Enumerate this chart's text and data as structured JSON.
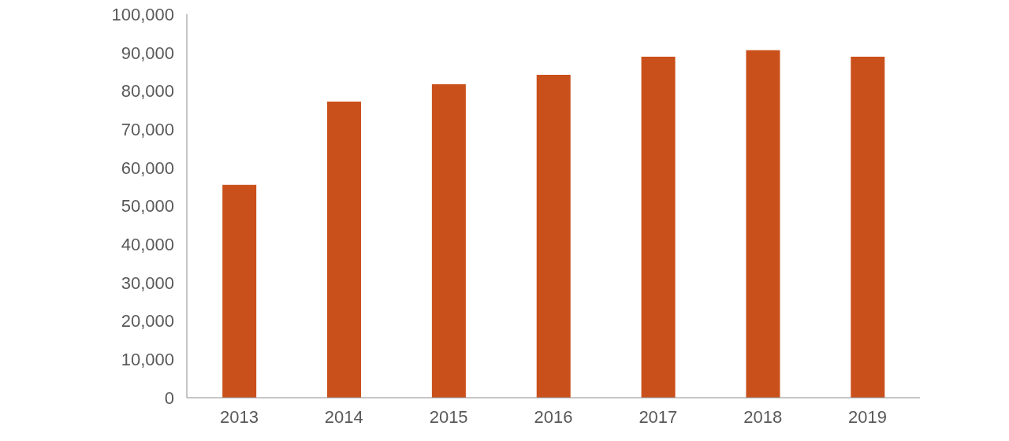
{
  "chart_data": {
    "type": "bar",
    "categories": [
      "2013",
      "2014",
      "2015",
      "2016",
      "2017",
      "2018",
      "2019"
    ],
    "values": [
      55500,
      77200,
      81700,
      84200,
      88900,
      90600,
      88900
    ],
    "color": "#ca501b",
    "ylim": [
      0,
      100000
    ],
    "yticks": [
      0,
      {
        "value": 10000,
        "label": "10,000"
      },
      {
        "value": 20000,
        "label": "20,000"
      },
      {
        "value": 30000,
        "label": "30,000"
      },
      {
        "value": 40000,
        "label": "40,000"
      },
      {
        "value": 50000,
        "label": "50,000"
      },
      {
        "value": 60000,
        "label": "60,000"
      },
      {
        "value": 70000,
        "label": "70,000"
      },
      {
        "value": 80000,
        "label": "80,000"
      },
      {
        "value": 90000,
        "label": "90,000"
      },
      {
        "value": 100000,
        "label": "100,000"
      }
    ],
    "grid": false
  }
}
